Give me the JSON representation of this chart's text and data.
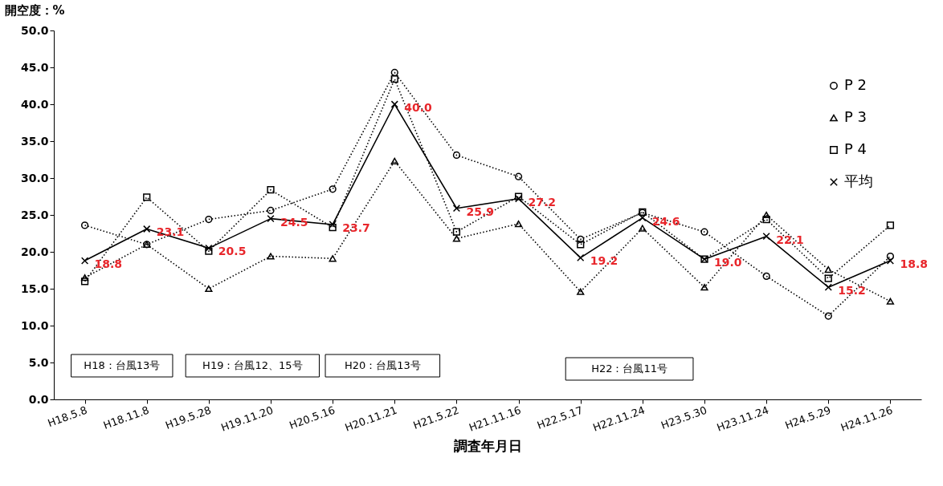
{
  "chart_data": {
    "type": "line",
    "ylabel": "開空度：%",
    "xlabel": "調査年月日",
    "categories": [
      "H18.5.8",
      "H18.11.8",
      "H19.5.28",
      "H19.11.20",
      "H20.5.16",
      "H20.11.21",
      "H21.5.22",
      "H21.11.16",
      "H22.5.17",
      "H22.11.24",
      "H23.5.30",
      "H23.11.24",
      "H24.5.29",
      "H24.11.26"
    ],
    "ylim": [
      0,
      50
    ],
    "yticks": [
      {
        "value": 0,
        "label": "0.0"
      },
      {
        "value": 5,
        "label": "5.0"
      },
      {
        "value": 10,
        "label": "10.0"
      },
      {
        "value": 15,
        "label": "15.0"
      },
      {
        "value": 20,
        "label": "20.0"
      },
      {
        "value": 25,
        "label": "25.0"
      },
      {
        "value": 30,
        "label": "30.0"
      },
      {
        "value": 35,
        "label": "35.0"
      },
      {
        "value": 40,
        "label": "40.0"
      },
      {
        "value": 45,
        "label": "45.0"
      },
      {
        "value": 50,
        "label": "50.0"
      }
    ],
    "grid": false,
    "legend": "top right",
    "series": [
      {
        "name": "P 2",
        "color": "#000000",
        "marker": "circle",
        "line_style": "dotted",
        "values": [
          23.6,
          21.0,
          24.4,
          25.6,
          28.5,
          44.3,
          33.1,
          30.2,
          21.7,
          25.3,
          22.7,
          16.7,
          11.3,
          19.4
        ]
      },
      {
        "name": "P 3",
        "color": "#000000",
        "marker": "triangle",
        "line_style": "dotted",
        "values": [
          16.5,
          21.0,
          15.0,
          19.4,
          19.1,
          32.3,
          21.8,
          23.8,
          14.6,
          23.2,
          15.2,
          25.0,
          17.6,
          13.3
        ]
      },
      {
        "name": "P 4",
        "color": "#000000",
        "marker": "square",
        "line_style": "dotted",
        "values": [
          16.0,
          27.4,
          20.1,
          28.4,
          23.3,
          43.4,
          22.7,
          27.5,
          21.0,
          25.4,
          19.0,
          24.4,
          16.4,
          23.6
        ]
      },
      {
        "name": "平均",
        "color": "#000000",
        "marker": "cross",
        "line_style": "solid",
        "values": [
          18.8,
          23.1,
          20.5,
          24.5,
          23.7,
          40.0,
          25.9,
          27.2,
          19.2,
          24.6,
          19.0,
          22.1,
          15.2,
          18.8
        ],
        "value_labels": [
          "18.8",
          "23.1",
          "20.5",
          "24.5",
          "23.7",
          "40.0",
          "25.9",
          "27.2",
          "19.2",
          "24.6",
          "19.0",
          "22.1",
          "15.2",
          "18.8"
        ]
      }
    ],
    "annotations": [
      "H18：台風13号",
      "H19：台風12、15号",
      "H20：台風13号",
      "H22：台風11号"
    ]
  }
}
